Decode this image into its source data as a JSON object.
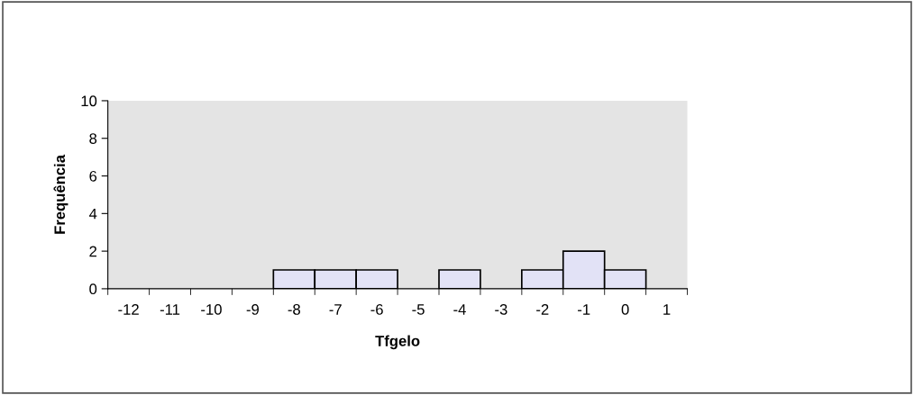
{
  "chart_data": {
    "type": "bar",
    "xlabel": "Tfgelo",
    "ylabel": "Frequência",
    "categories": [
      "-12",
      "-11",
      "-10",
      "-9",
      "-8",
      "-7",
      "-6",
      "-5",
      "-4",
      "-3",
      "-2",
      "-1",
      "0",
      "1"
    ],
    "values": [
      0,
      0,
      0,
      0,
      1,
      1,
      1,
      0,
      1,
      0,
      1,
      2,
      1,
      0
    ],
    "color": "#e2e2f6",
    "ylim": [
      0,
      10
    ],
    "yticks": [
      0,
      2,
      4,
      6,
      8,
      10
    ],
    "grid": false,
    "legend": false
  }
}
